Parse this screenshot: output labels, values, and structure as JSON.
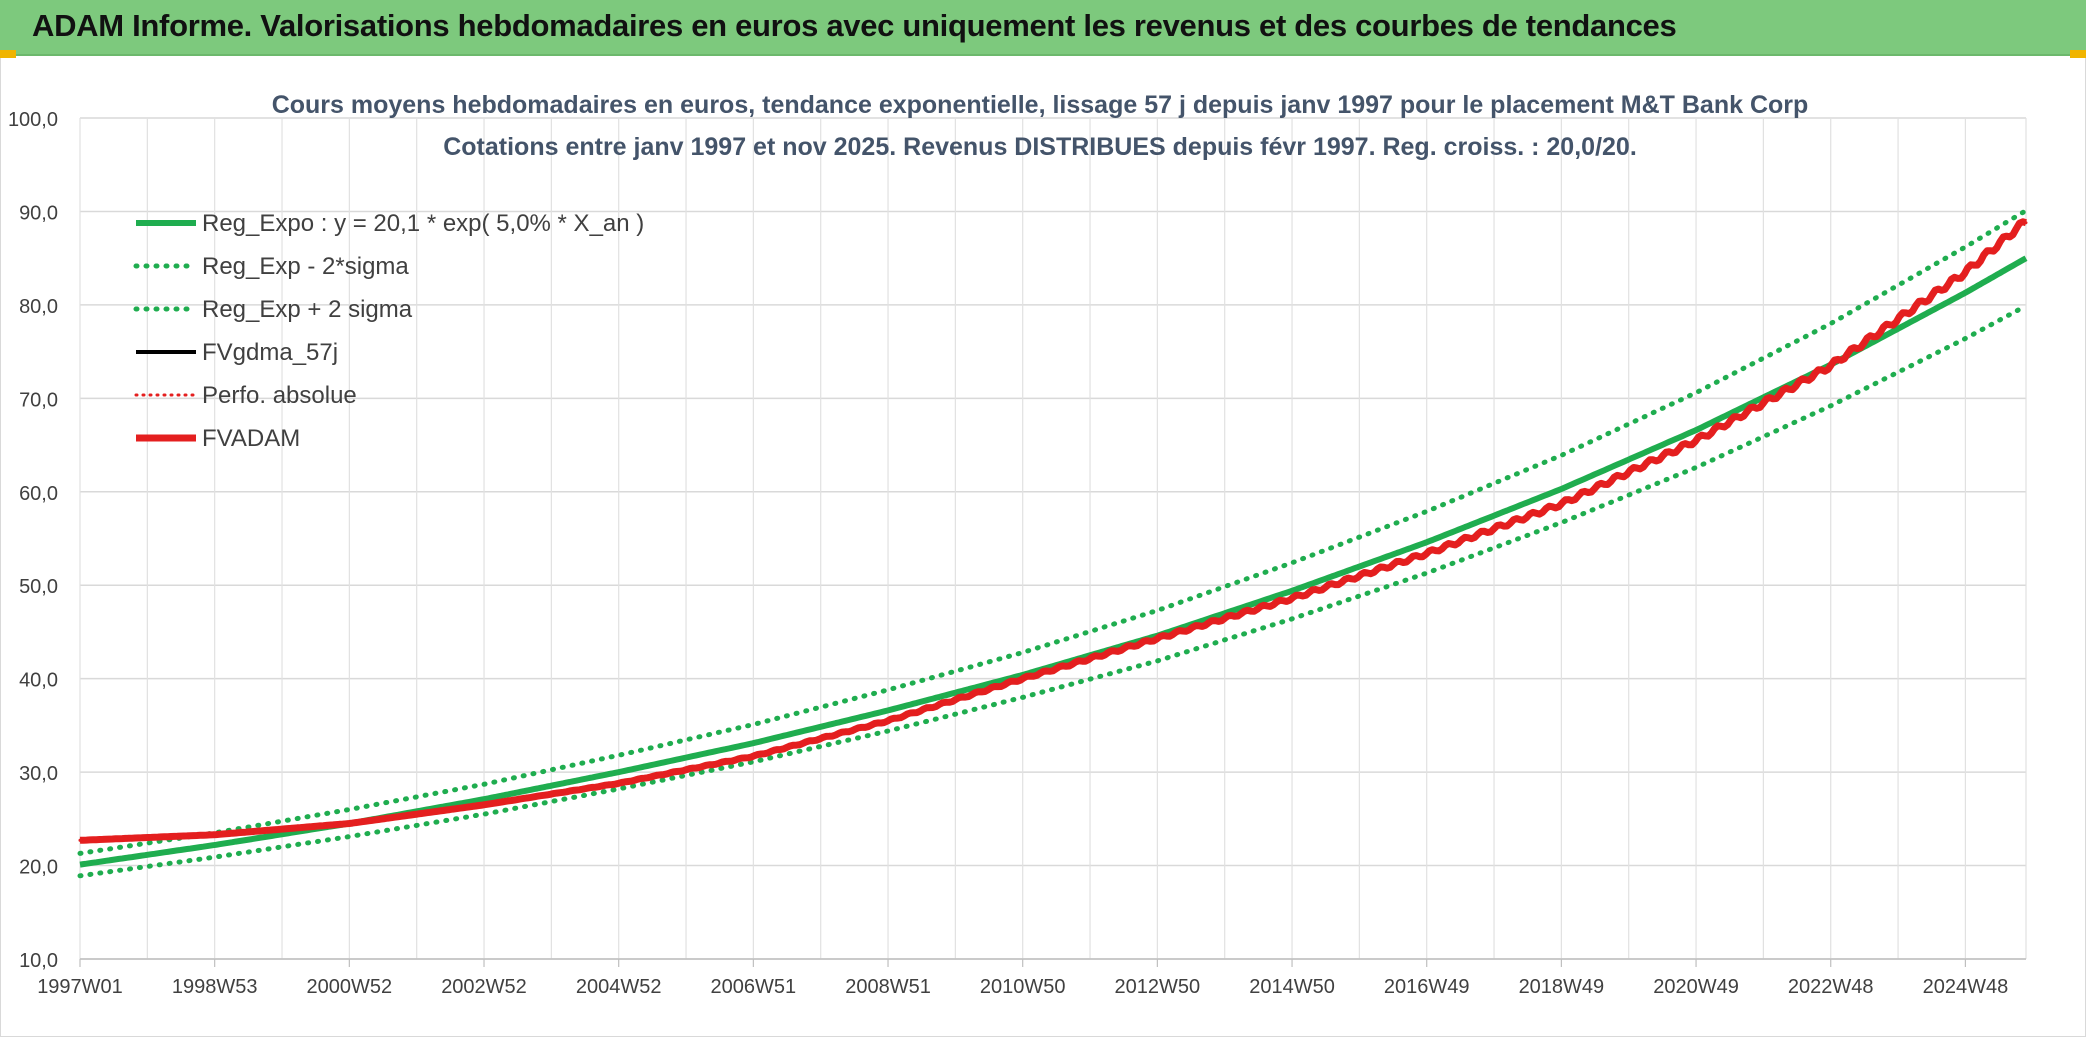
{
  "banner": {
    "title": "ADAM Informe. Valorisations hebdomadaires en euros avec uniquement les revenus et des courbes de tendances"
  },
  "chart_data": {
    "type": "line",
    "title": "Cours moyens hebdomadaires en euros, tendance exponentielle, lissage 57 j depuis janv 1997 pour le placement M&T Bank Corp",
    "subtitle": "Cotations entre janv 1997 et nov 2025. Revenus DISTRIBUES depuis févr 1997. Reg. croiss. : 20,0/20.",
    "xlabel": "",
    "ylabel": "",
    "ylim": [
      10,
      100
    ],
    "yticks": [
      "10,0",
      "20,0",
      "30,0",
      "40,0",
      "50,0",
      "60,0",
      "70,0",
      "80,0",
      "90,0",
      "100,0"
    ],
    "xlim": [
      0,
      28.9
    ],
    "xticks": [
      {
        "label": "1997W01",
        "x": 0
      },
      {
        "label": "1998W53",
        "x": 2
      },
      {
        "label": "2000W52",
        "x": 4
      },
      {
        "label": "2002W52",
        "x": 6
      },
      {
        "label": "2004W52",
        "x": 8
      },
      {
        "label": "2006W51",
        "x": 10
      },
      {
        "label": "2008W51",
        "x": 12
      },
      {
        "label": "2010W50",
        "x": 14
      },
      {
        "label": "2012W50",
        "x": 16
      },
      {
        "label": "2014W50",
        "x": 18
      },
      {
        "label": "2016W49",
        "x": 20
      },
      {
        "label": "2018W49",
        "x": 22
      },
      {
        "label": "2020W49",
        "x": 24
      },
      {
        "label": "2022W48",
        "x": 26
      },
      {
        "label": "2024W48",
        "x": 28
      }
    ],
    "grid": true,
    "legend_position": "top-left",
    "series": [
      {
        "name": "Reg_Expo : y = 20,1 * exp( 5,0% *  X_an )",
        "color": "#1fad4f",
        "style": "solid",
        "x": [
          0,
          2,
          4,
          6,
          8,
          10,
          12,
          14,
          16,
          18,
          20,
          22,
          24,
          26,
          28,
          28.9
        ],
        "values": [
          20.1,
          22.2,
          24.5,
          27.1,
          30.0,
          33.1,
          36.6,
          40.4,
          44.6,
          49.4,
          54.6,
          60.3,
          66.6,
          73.6,
          81.3,
          85.0
        ]
      },
      {
        "name": "Reg_Exp - 2*sigma",
        "color": "#1fad4f",
        "style": "dotted",
        "x": [
          0,
          2,
          4,
          6,
          8,
          10,
          12,
          14,
          16,
          18,
          20,
          22,
          24,
          26,
          28,
          28.9
        ],
        "values": [
          18.9,
          20.9,
          23.1,
          25.5,
          28.2,
          31.1,
          34.4,
          38.0,
          41.9,
          46.4,
          51.3,
          56.7,
          62.6,
          69.2,
          76.4,
          79.9
        ]
      },
      {
        "name": "Reg_Exp + 2 sigma",
        "color": "#1fad4f",
        "style": "dotted",
        "x": [
          0,
          2,
          4,
          6,
          8,
          10,
          12,
          14,
          16,
          18,
          20,
          22,
          24,
          26,
          28,
          28.9
        ],
        "values": [
          21.3,
          23.5,
          26.0,
          28.7,
          31.8,
          35.1,
          38.8,
          42.8,
          47.3,
          52.4,
          57.9,
          63.9,
          70.6,
          78.0,
          86.2,
          90.1
        ]
      },
      {
        "name": "FVgdma_57j",
        "color": "#000000",
        "style": "solid",
        "x": [
          0,
          2,
          4,
          6,
          8,
          10,
          12,
          14,
          16,
          18,
          20,
          22,
          24,
          26,
          28,
          28.9
        ],
        "values": [
          22.7,
          23.3,
          24.5,
          26.5,
          28.8,
          31.7,
          35.5,
          40.0,
          44.3,
          48.6,
          53.4,
          58.7,
          65.5,
          73.5,
          83.5,
          89.0
        ]
      },
      {
        "name": "Perfo. absolue",
        "color": "#e41f1f",
        "style": "dotted",
        "x": [
          0,
          2,
          4,
          6,
          8,
          10,
          12,
          14,
          16,
          18,
          20,
          22,
          24,
          26,
          28,
          28.9
        ],
        "values": [
          22.7,
          23.3,
          24.5,
          26.5,
          28.8,
          31.7,
          35.5,
          40.0,
          44.3,
          48.6,
          53.4,
          58.7,
          65.5,
          73.5,
          83.5,
          89.0
        ]
      },
      {
        "name": "FVADAM",
        "color": "#e41f1f",
        "style": "solid",
        "x": [
          0,
          2,
          4,
          6,
          8,
          10,
          12,
          14,
          16,
          18,
          20,
          22,
          24,
          26,
          28,
          28.9
        ],
        "values": [
          22.7,
          23.3,
          24.5,
          26.5,
          28.8,
          31.7,
          35.5,
          40.0,
          44.3,
          48.6,
          53.4,
          58.7,
          65.5,
          73.5,
          83.5,
          89.0
        ]
      }
    ]
  }
}
